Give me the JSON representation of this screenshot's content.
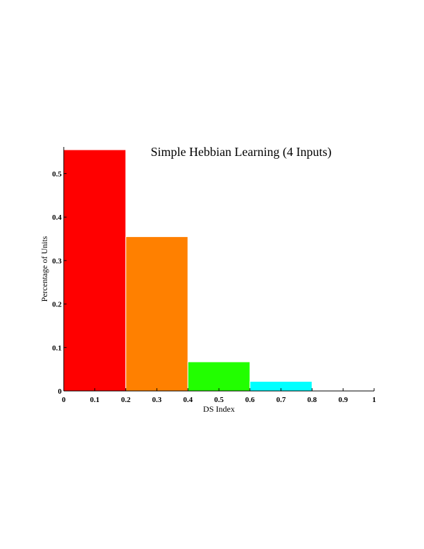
{
  "chart_data": {
    "type": "bar",
    "title": "Simple Hebbian Learning (4 Inputs)",
    "xlabel": "DS Index",
    "ylabel": "Percentage of Units",
    "xlim": [
      0,
      1
    ],
    "ylim": [
      0,
      0.55
    ],
    "grid": false,
    "legend": "none",
    "x_ticks": [
      "0",
      "0.1",
      "0.2",
      "0.3",
      "0.4",
      "0.5",
      "0.6",
      "0.7",
      "0.8",
      "0.9",
      "1"
    ],
    "y_ticks": [
      "0",
      "0.1",
      "0.2",
      "0.3",
      "0.4",
      "0.5"
    ],
    "bins": [
      {
        "x0": 0.0,
        "x1": 0.2,
        "value": 0.555,
        "color": "#ff0000"
      },
      {
        "x0": 0.2,
        "x1": 0.4,
        "value": 0.355,
        "color": "#ff8000"
      },
      {
        "x0": 0.4,
        "x1": 0.6,
        "value": 0.067,
        "color": "#22ff00"
      },
      {
        "x0": 0.6,
        "x1": 0.8,
        "value": 0.022,
        "color": "#00ffff"
      },
      {
        "x0": 0.8,
        "x1": 1.0,
        "value": 0.0,
        "color": "#ffffff"
      }
    ]
  }
}
